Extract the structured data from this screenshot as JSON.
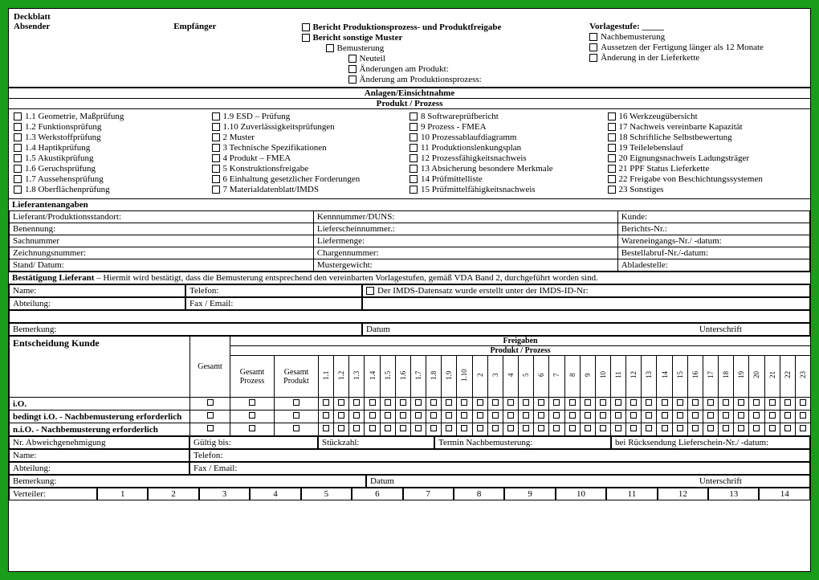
{
  "colors": {
    "page_bg": "#1a9e1a",
    "sheet_bg": "#ffffff",
    "line": "#000000"
  },
  "typography": {
    "family": "Times New Roman",
    "base_size_pt": 8
  },
  "deckblatt": {
    "title": "Deckblatt",
    "absender": "Absender",
    "empfaenger": "Empfänger",
    "bericht1": "Bericht Produktionsprozess- und Produktfreigabe",
    "bericht2": "Bericht sonstige Muster",
    "sub": {
      "bemusterung": "Bemusterung",
      "neuteil": "Neuteil",
      "aenderungen_produkt": "Änderungen am Produkt:",
      "aenderung_prozess": "Änderung am Produktionsprozess:"
    },
    "vorlagestufe": "Vorlagestufe: _____",
    "opts": {
      "nachbemusterung": "Nachbemusterung",
      "aussetzen": "Aussetzen der Fertigung länger als 12 Monate",
      "lieferkette": "Änderung in der Lieferkette"
    }
  },
  "anlagen_hdr": "Anlagen/Einsichtnahme",
  "produkt_prozess_hdr": "Produkt / Prozess",
  "pp": {
    "c1": [
      "1.1 Geometrie, Maßprüfung",
      "1.2 Funktionsprüfung",
      "1.3 Werkstoffprüfung",
      "1.4 Haptikprüfung",
      "1.5 Akustikprüfung",
      "1.6 Geruchsprüfung",
      "1.7 Aussehensprüfung",
      "1.8 Oberflächenprüfung"
    ],
    "c2": [
      "1.9 ESD – Prüfung",
      "1.10 Zuverlässigkeitsprüfungen",
      "2 Muster",
      "3 Technische Spezifikationen",
      "4 Produkt – FMEA",
      "5 Konstruktionsfreigabe",
      "6 Einhaltung gesetzlicher Forderungen",
      "7 Materialdatenblatt/IMDS"
    ],
    "c3": [
      "8 Softwareprüfbericht",
      "9 Prozess - FMEA",
      "10 Prozessablaufdiagramm",
      "11 Produktionslenkungsplan",
      "12 Prozessfähigkeitsnachweis",
      "13 Absicherung besondere Merkmale",
      "14 Prüfmittelliste",
      "15 Prüfmittelfähigkeitsnachweis"
    ],
    "c4": [
      "16 Werkzeugübersicht",
      "17 Nachweis vereinbarte Kapazität",
      "18 Schriftliche Selbstbewertung",
      "19 Teilelebenslauf",
      "20 Eignungsnachweis Ladungsträger",
      "21 PPF Status Lieferkette",
      "22 Freigabe von Beschichtungssystemen",
      "23 Sonstiges"
    ]
  },
  "lieferantenangaben": {
    "title": "Lieferantenangaben",
    "rows": [
      [
        "Lieferant/Produktionsstandort:",
        "Kennnummer/DUNS:",
        "Kunde:"
      ],
      [
        "Benennung:",
        "Lieferscheinnummer.:",
        "Berichts-Nr.:"
      ],
      [
        "Sachnummer",
        "Liefermenge:",
        "Wareneingangs-Nr./ -datum:"
      ],
      [
        "Zeichnungsnummer:",
        "Chargennummer:",
        "Bestellabruf-Nr./-datum:"
      ],
      [
        "Stand/ Datum:",
        "Mustergewicht:",
        "Abladestelle:"
      ]
    ]
  },
  "bestaetigung": {
    "title": "Bestätigung Lieferant",
    "text": " – Hiermit wird bestätigt, dass die Bemusterung entsprechend den vereinbarten Vorlagestufen, gemäß VDA Band 2, durchgeführt worden sind.",
    "name": "Name:",
    "telefon": "Telefon:",
    "imds": "Der IMDS-Datensatz wurde erstellt unter der IMDS-ID-Nr:",
    "abteilung": "Abteilung:",
    "fax": "Fax / Email:",
    "bemerkung": "Bemerkung:",
    "datum": "Datum",
    "unterschrift": "Unterschrift"
  },
  "entscheidung": {
    "title": "Entscheidung Kunde",
    "freigaben": "Freigaben",
    "produkt_prozess": "Produkt / Prozess",
    "gesamt": "Gesamt",
    "gesamt_prozess": "Gesamt Prozess",
    "gesamt_produkt": "Gesamt Produkt",
    "cols": [
      "1.1",
      "1.2",
      "1.3",
      "1.4",
      "1.5",
      "1.6",
      "1.7",
      "1.8",
      "1.9",
      "1.10",
      "2",
      "3",
      "4",
      "5",
      "6",
      "7",
      "8",
      "9",
      "10",
      "11",
      "12",
      "13",
      "14",
      "15",
      "16",
      "17",
      "18",
      "19",
      "20",
      "21",
      "22",
      "23"
    ],
    "rows": [
      "i.O.",
      "bedingt i.O. - Nachbemusterung erforderlich",
      "n.i.O. - Nachbemusterung erforderlich"
    ]
  },
  "footer": {
    "abw": "Nr. Abweichgenehmigung",
    "gueltig": "Gültig bis:",
    "stueck": "Stückzahl:",
    "termin": "Termin Nachbemusterung:",
    "rueck": "bei Rücksendung Lieferschein-Nr./ -datum:",
    "name": "Name:",
    "telefon": "Telefon:",
    "abteilung": "Abteilung:",
    "fax": "Fax / Email:",
    "bemerkung": "Bemerkung:",
    "datum": "Datum",
    "unterschrift": "Unterschrift",
    "verteiler": "Verteiler:",
    "nums": [
      "1",
      "2",
      "3",
      "4",
      "5",
      "6",
      "7",
      "8",
      "9",
      "10",
      "11",
      "12",
      "13",
      "14"
    ]
  }
}
